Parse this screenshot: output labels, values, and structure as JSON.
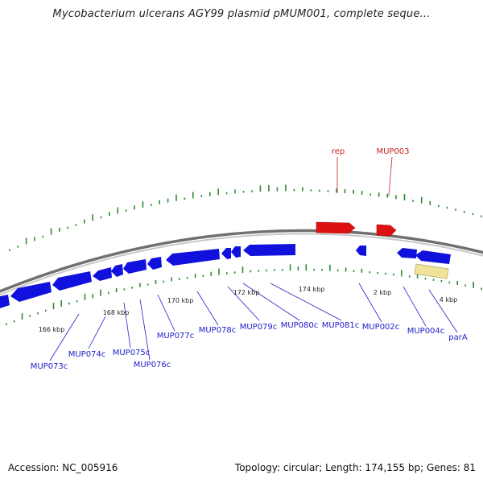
{
  "title": "Mycobacterium ulcerans AGY99 plasmid pMUM001, complete seque...",
  "footer": {
    "accession": "Accession: NC_005916",
    "summary": "Topology: circular; Length: 174,155 bp; Genes: 81"
  },
  "colors": {
    "forward_gene": "#dd1111",
    "reverse_gene": "#1111dd",
    "other_feature": "#efe39a",
    "backbone": "#707070",
    "gc_ticks": "#2e8b2e",
    "label_blue": "#2020c8",
    "label_red": "#c82020"
  },
  "tick_labels": [
    "166 kbp",
    "168 kbp",
    "170 kbp",
    "172 kbp",
    "174 kbp",
    "2 kbp",
    "4 kbp"
  ],
  "gene_labels": {
    "top": [
      "rep",
      "MUP003"
    ],
    "bottom": [
      "MUP073c",
      "MUP074c",
      "MUP075c",
      "MUP076c",
      "MUP077c",
      "MUP078c",
      "MUP079c",
      "MUP080c",
      "MUP081c",
      "MUP002c",
      "MUP004c",
      "parA"
    ]
  }
}
